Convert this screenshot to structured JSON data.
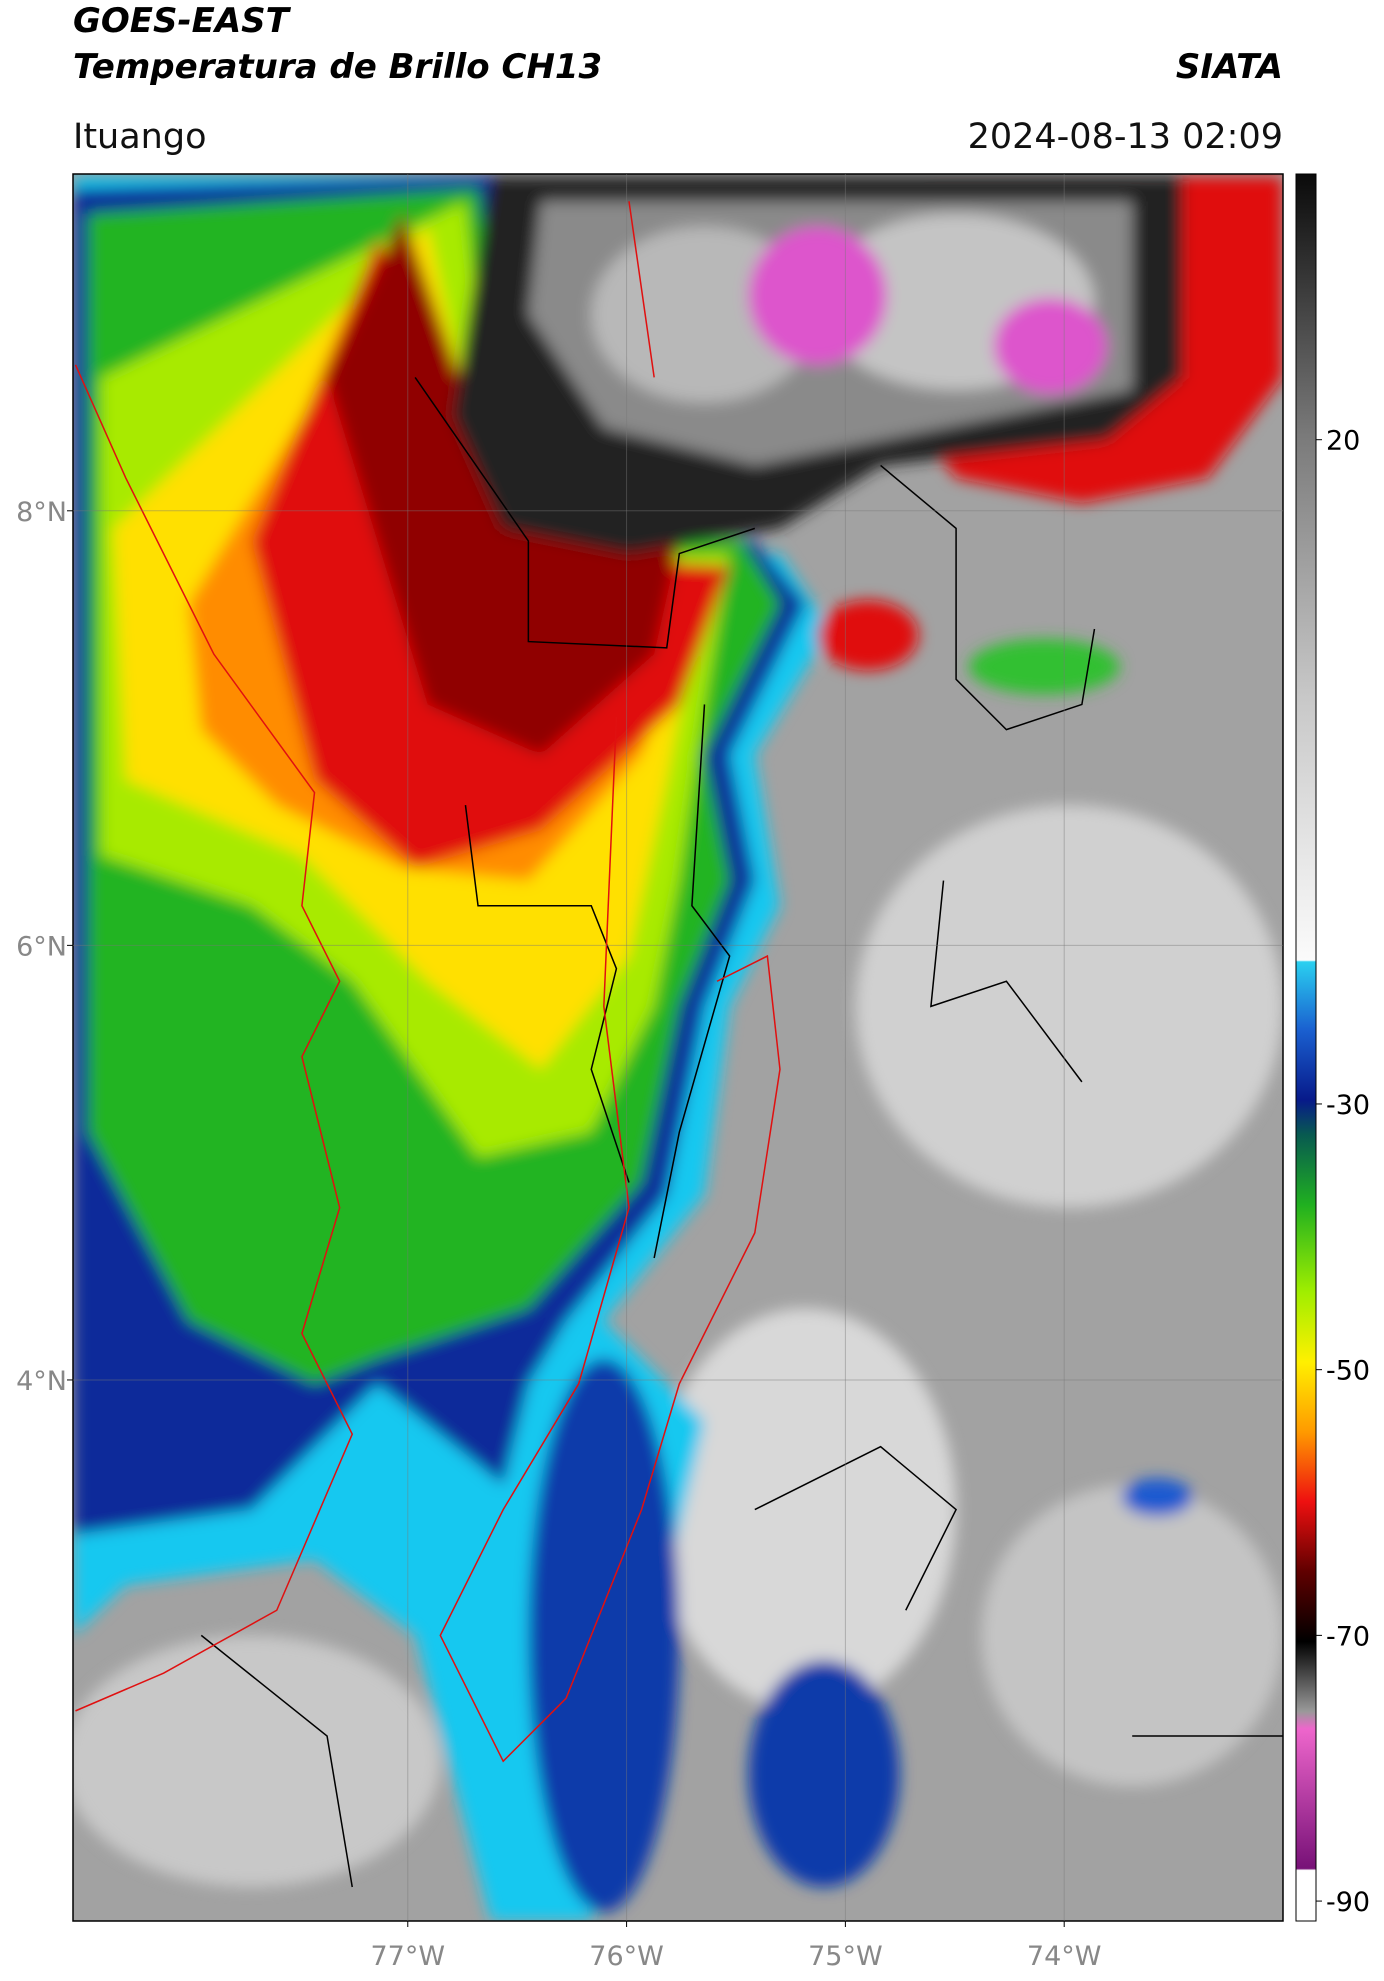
{
  "header": {
    "title": "GOES-EAST",
    "subtitle": "Temperatura de Brillo CH13",
    "agency": "SIATA",
    "location": "Ituango",
    "datetime": "2024-08-13 02:09"
  },
  "map": {
    "xlim": [
      -78.53,
      -73.0
    ],
    "ylim": [
      1.51,
      9.55
    ],
    "xticks": [
      {
        "value": -77,
        "label": "77°W"
      },
      {
        "value": -76,
        "label": "76°W"
      },
      {
        "value": -75,
        "label": "75°W"
      },
      {
        "value": -74,
        "label": "74°W"
      }
    ],
    "yticks": [
      {
        "value": 8,
        "label": "8°N"
      },
      {
        "value": 6,
        "label": "6°N"
      },
      {
        "value": 4,
        "label": "4°N"
      }
    ],
    "grid": true
  },
  "colorbar": {
    "lim": [
      -91.5,
      40
    ],
    "ticks": [
      20,
      -30,
      -50,
      -70,
      -90
    ]
  }
}
